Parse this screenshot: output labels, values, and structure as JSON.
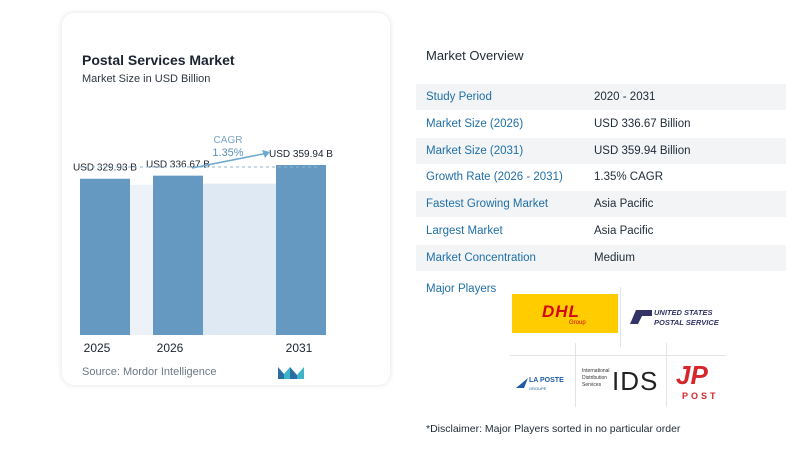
{
  "chart_data": {
    "type": "bar",
    "title": "Postal Services Market",
    "subtitle": "Market Size in USD Billion",
    "categories": [
      "2025",
      "2026",
      "2031"
    ],
    "values": [
      329.93,
      336.67,
      359.94
    ],
    "value_labels": [
      "USD 329.93 B",
      "USD 336.67 B",
      "USD 359.94 B"
    ],
    "cagr_label": "CAGR",
    "cagr_value": "1.35%",
    "bar_color": "#6699c2",
    "gap_color": "#dfe9f3",
    "accent_color": "#6fa8cf"
  },
  "source": "Source:  Mordor Intelligence",
  "overview": {
    "title": "Market Overview",
    "rows": [
      {
        "label": "Study Period",
        "value": "2020 - 2031"
      },
      {
        "label": "Market Size (2026)",
        "value": "USD 336.67 Billion"
      },
      {
        "label": "Market Size (2031)",
        "value": "USD 359.94 Billion"
      },
      {
        "label": "Growth Rate (2026 - 2031)",
        "value": "1.35% CAGR"
      },
      {
        "label": "Fastest Growing Market",
        "value": "Asia Pacific"
      },
      {
        "label": "Largest Market",
        "value": "Asia Pacific"
      },
      {
        "label": "Market Concentration",
        "value": "Medium"
      }
    ],
    "players_label": "Major Players"
  },
  "players": {
    "dhl": {
      "name": "DHL",
      "sub": "Group"
    },
    "usps": {
      "line1": "UNITED STATES",
      "line2": "POSTAL SERVICE"
    },
    "laposte": {
      "name": "LA POSTE",
      "sub": "GROUPE"
    },
    "ids": {
      "text1": "International",
      "text2": "Distribution",
      "text3": "Services",
      "mark": "IDS"
    },
    "jp": {
      "mark": "JP",
      "word": "POST"
    }
  },
  "disclaimer": "*Disclaimer: Major Players sorted in no particular order"
}
